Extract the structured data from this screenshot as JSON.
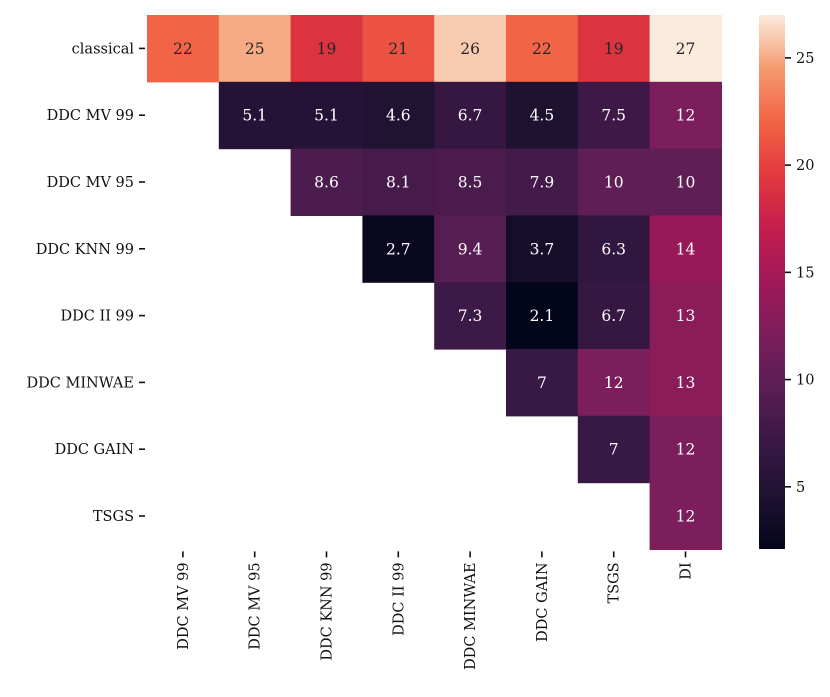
{
  "chart_data": {
    "type": "heatmap",
    "title": "",
    "xlabel": "",
    "ylabel": "",
    "row_labels": [
      "classical",
      "DDC MV 99",
      "DDC MV 95",
      "DDC KNN 99",
      "DDC II 99",
      "DDC MINWAE",
      "DDC GAIN",
      "TSGS"
    ],
    "col_labels": [
      "DDC MV 99",
      "DDC MV 95",
      "DDC KNN 99",
      "DDC II 99",
      "DDC MINWAE",
      "DDC GAIN",
      "TSGS",
      "DI"
    ],
    "values": [
      [
        22,
        25,
        19,
        21,
        26,
        22,
        19,
        27
      ],
      [
        null,
        5.1,
        5.1,
        4.6,
        6.7,
        4.5,
        7.5,
        12
      ],
      [
        null,
        null,
        8.6,
        8.1,
        8.5,
        7.9,
        10,
        10
      ],
      [
        null,
        null,
        null,
        2.7,
        9.4,
        3.7,
        6.3,
        14
      ],
      [
        null,
        null,
        null,
        null,
        7.3,
        2.1,
        6.7,
        13
      ],
      [
        null,
        null,
        null,
        null,
        null,
        7,
        12,
        13
      ],
      [
        null,
        null,
        null,
        null,
        null,
        null,
        7,
        12
      ],
      [
        null,
        null,
        null,
        null,
        null,
        null,
        null,
        12
      ]
    ],
    "colormap": "rocket",
    "colorbar": {
      "range": [
        2.1,
        27
      ],
      "ticks": [
        5,
        10,
        15,
        20,
        25
      ],
      "position": "right"
    }
  }
}
